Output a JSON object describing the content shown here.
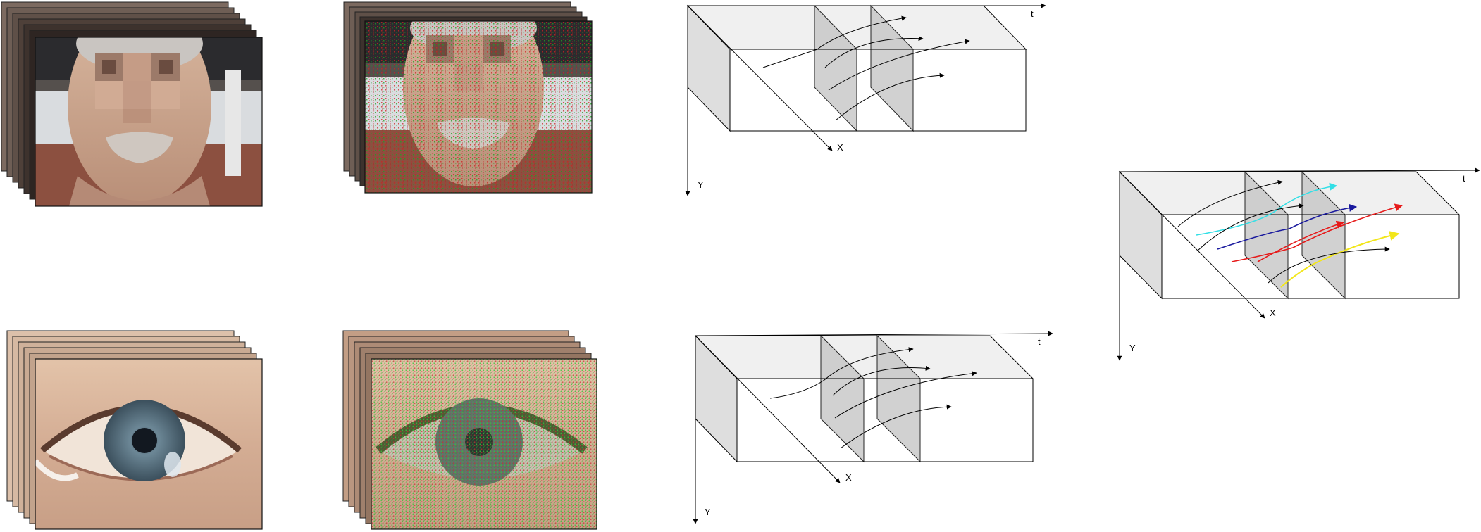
{
  "top_panel": {
    "axes": {
      "t_label": "t",
      "x_label": "X",
      "y_label": "Y"
    }
  },
  "bottom_panel": {
    "axes": {
      "t_label": "t",
      "x_label": "X",
      "y_label": "Y"
    }
  },
  "combined_panel": {
    "axes": {
      "t_label": "t",
      "x_label": "X",
      "y_label": "Y"
    },
    "trajectory_colors": [
      "#000000",
      "#33dfe6",
      "#000000",
      "#1a1a9e",
      "#e61a1a",
      "#f2e61a",
      "#000000"
    ]
  }
}
